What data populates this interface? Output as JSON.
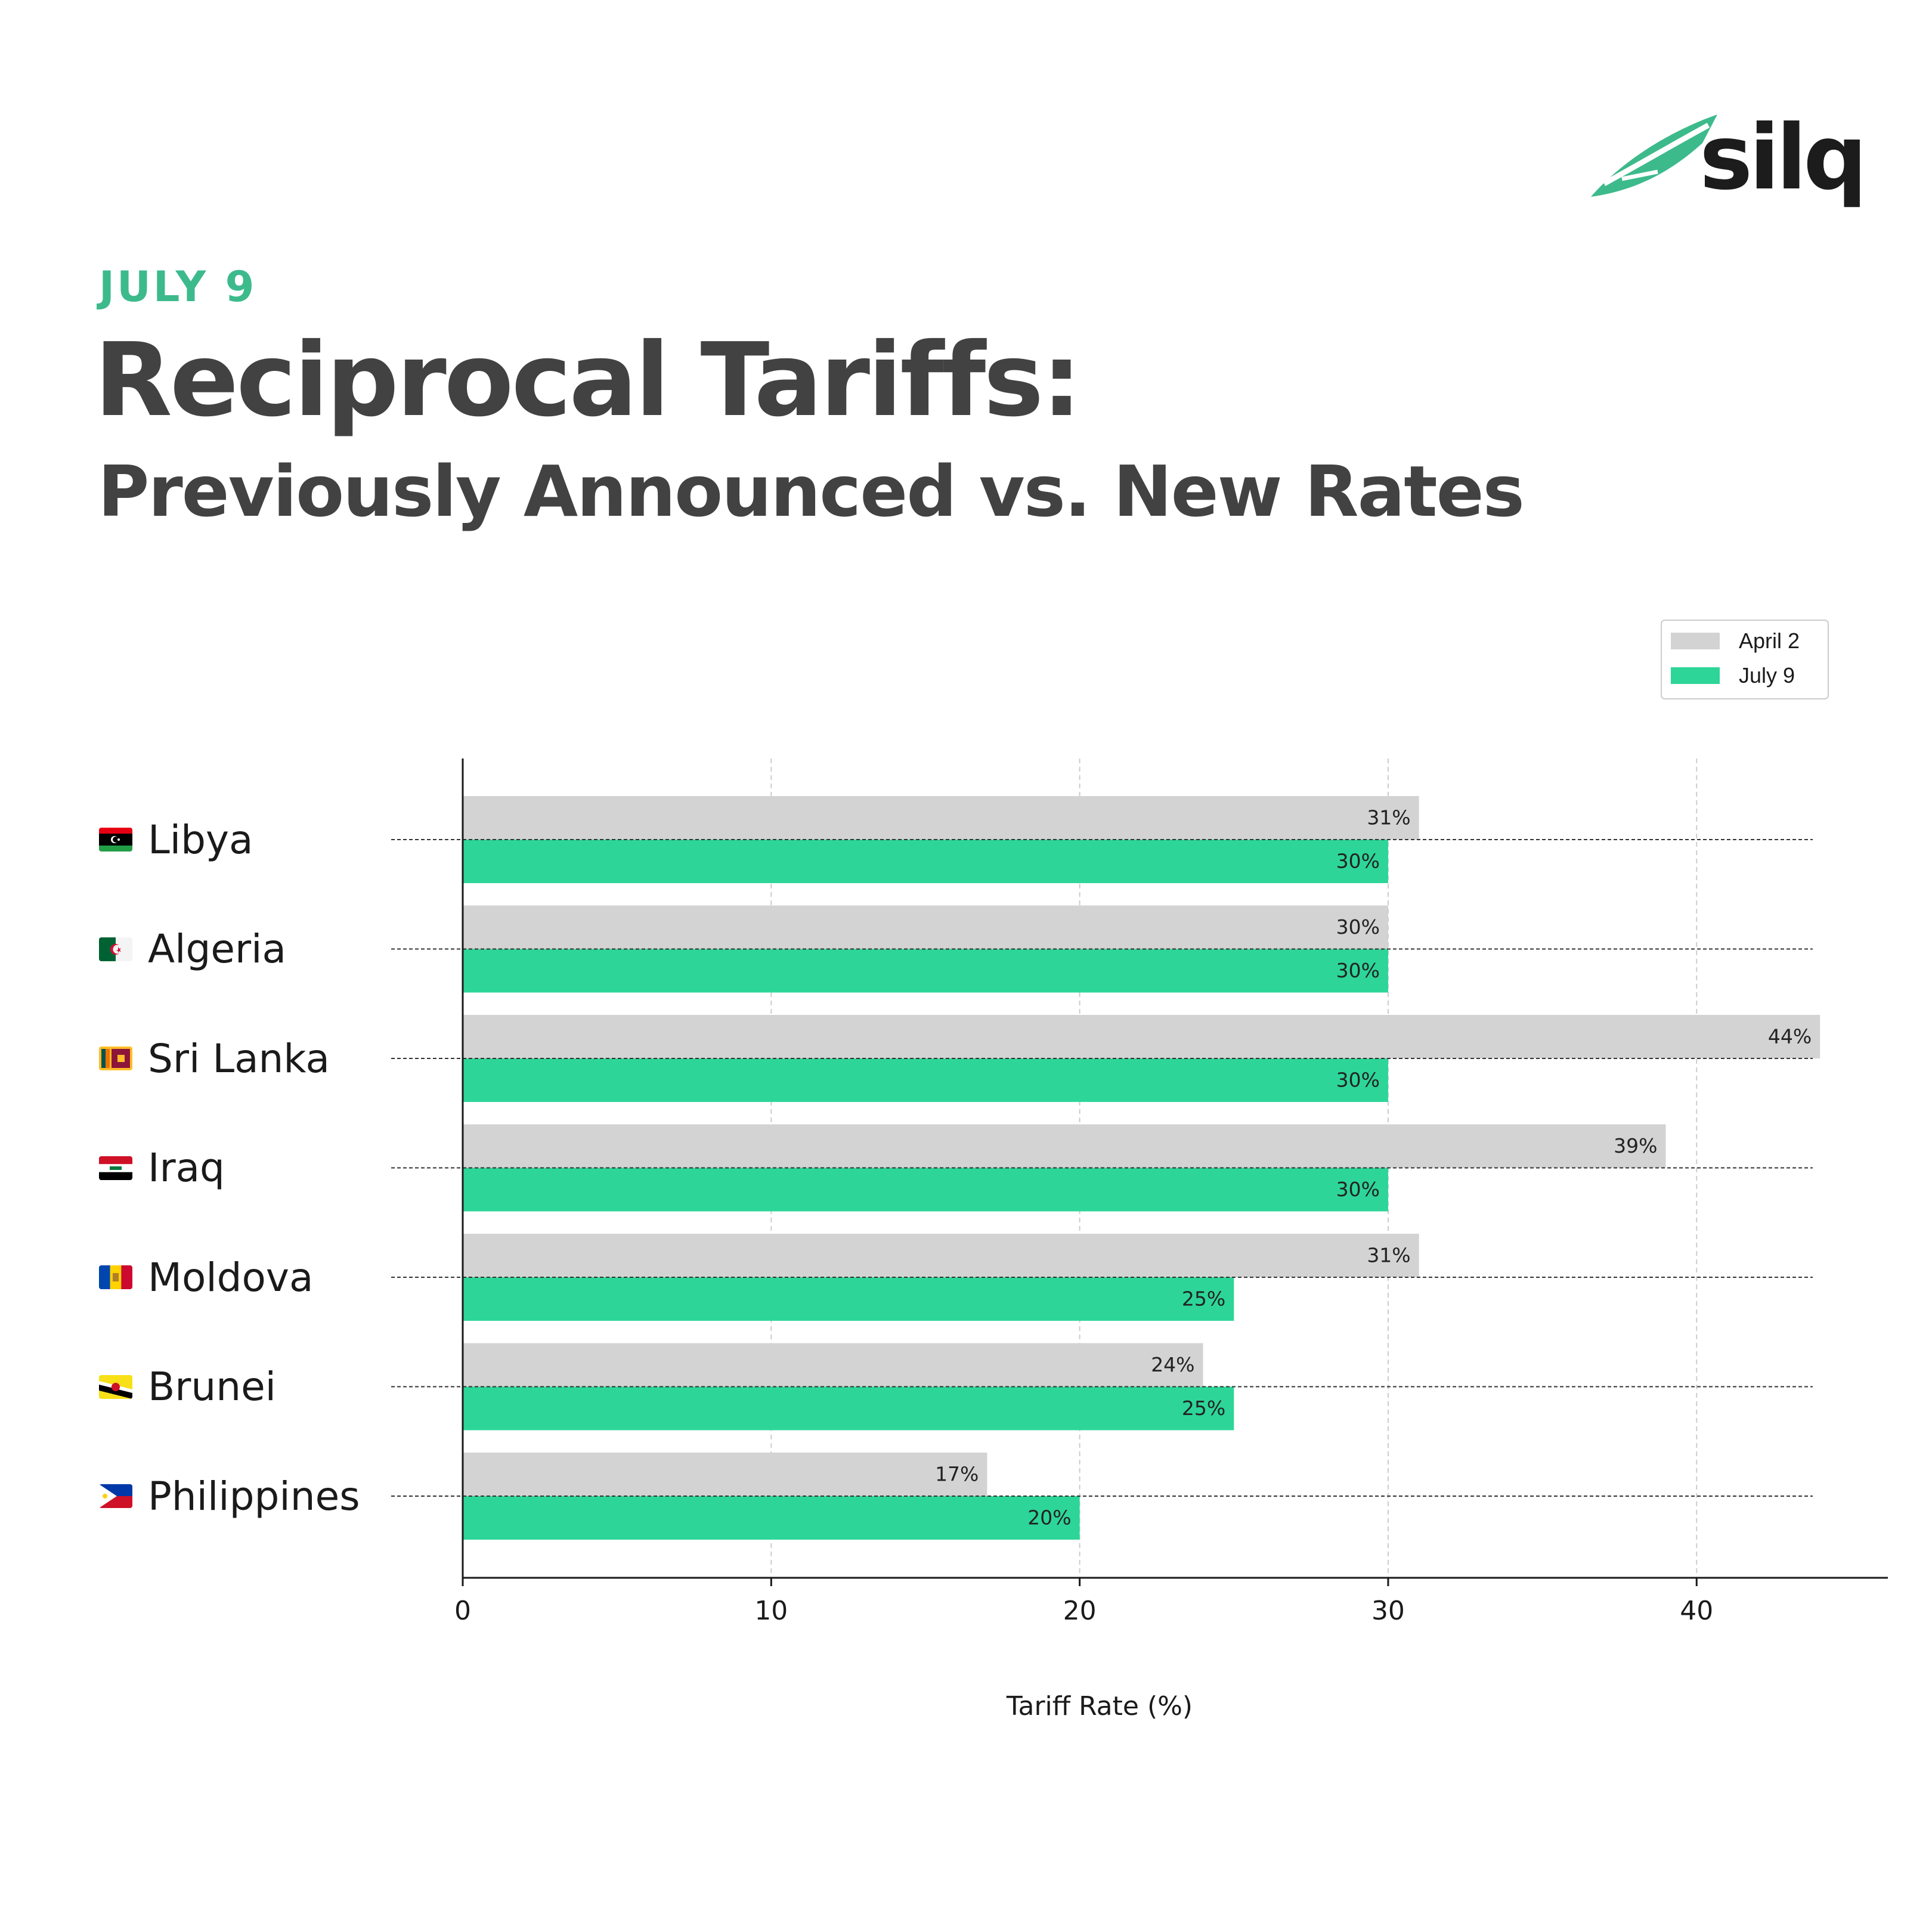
{
  "brand": {
    "name": "silq",
    "accent": "#3dba8c"
  },
  "header": {
    "date_label": "JULY 9",
    "title": "Reciprocal Tariffs:",
    "subtitle": "Previously Announced vs. New Rates"
  },
  "countries": [
    {
      "name": "Libya",
      "flag": "libya-flag-icon"
    },
    {
      "name": "Algeria",
      "flag": "algeria-flag-icon"
    },
    {
      "name": "Sri Lanka",
      "flag": "sri-lanka-flag-icon"
    },
    {
      "name": "Iraq",
      "flag": "iraq-flag-icon"
    },
    {
      "name": "Moldova",
      "flag": "moldova-flag-icon"
    },
    {
      "name": "Brunei",
      "flag": "brunei-flag-icon"
    },
    {
      "name": "Philippines",
      "flag": "philippines-flag-icon"
    }
  ],
  "chart_data": {
    "type": "bar",
    "orientation": "horizontal",
    "categories": [
      "Libya",
      "Algeria",
      "Sri Lanka",
      "Iraq",
      "Moldova",
      "Brunei",
      "Philippines"
    ],
    "series": [
      {
        "name": "April 2",
        "color": "#d3d3d3",
        "values": [
          31,
          30,
          44,
          39,
          31,
          24,
          17
        ],
        "labels": [
          "31%",
          "30%",
          "44%",
          "39%",
          "31%",
          "24%",
          "17%"
        ]
      },
      {
        "name": "July 9",
        "color": "#2dd698",
        "values": [
          30,
          30,
          30,
          30,
          25,
          25,
          20
        ],
        "labels": [
          "30%",
          "30%",
          "30%",
          "30%",
          "25%",
          "25%",
          "20%"
        ]
      }
    ],
    "xlabel": "Tariff Rate (%)",
    "ylabel": "",
    "xlim": [
      0,
      46.2
    ],
    "xticks": [
      0,
      10,
      20,
      30,
      40
    ],
    "xtick_labels": [
      "0",
      "10",
      "20",
      "30",
      "40"
    ],
    "grid": true,
    "legend_position": "top-right"
  }
}
